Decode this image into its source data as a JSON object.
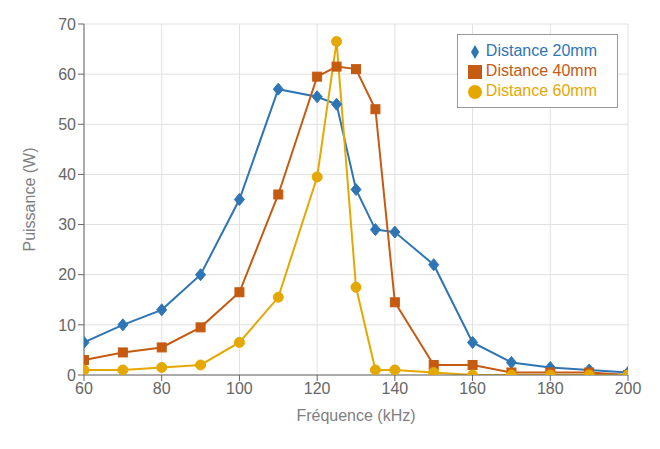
{
  "chart_data": {
    "type": "line",
    "x": [
      60,
      70,
      80,
      90,
      100,
      110,
      120,
      125,
      130,
      135,
      140,
      150,
      160,
      170,
      180,
      190,
      200
    ],
    "series": [
      {
        "name": "Distance 20mm",
        "color": "#2E75B6",
        "marker": "diamond",
        "values": [
          6.5,
          10.0,
          13.0,
          20.0,
          35.0,
          57.0,
          55.5,
          54.0,
          37.0,
          29.0,
          28.5,
          22.0,
          6.5,
          2.5,
          1.5,
          1.0,
          0.5
        ]
      },
      {
        "name": "Distance 40mm",
        "color": "#C55A11",
        "marker": "square",
        "values": [
          3.0,
          4.5,
          5.5,
          9.5,
          16.5,
          36.0,
          59.5,
          61.5,
          61.0,
          53.0,
          14.5,
          2.0,
          2.0,
          0.5,
          0.5,
          0.5,
          0.0
        ]
      },
      {
        "name": "Distance 60mm",
        "color": "#E5A800",
        "marker": "circle",
        "values": [
          1.0,
          1.0,
          1.5,
          2.0,
          6.5,
          15.5,
          39.5,
          66.5,
          17.5,
          1.0,
          1.0,
          0.5,
          0.0,
          0.0,
          0.0,
          0.0,
          0.0
        ]
      }
    ],
    "xlabel": "Fréquence (kHz)",
    "ylabel": "Puissance (W)",
    "xlim": [
      60,
      200
    ],
    "ylim": [
      0,
      70
    ],
    "xticks": [
      60,
      80,
      100,
      120,
      140,
      160,
      180,
      200
    ],
    "yticks": [
      0,
      10,
      20,
      30,
      40,
      50,
      60,
      70
    ],
    "grid": true,
    "legend": "upper right"
  }
}
